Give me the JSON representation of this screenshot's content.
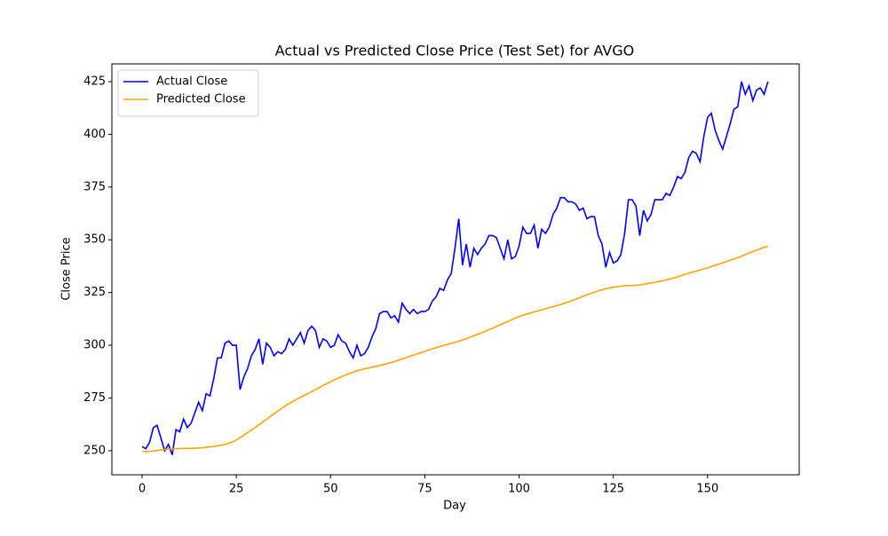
{
  "chart_data": {
    "type": "line",
    "title": "Actual vs Predicted Close Price (Test Set) for AVGO",
    "xlabel": "Day",
    "ylabel": "Close Price",
    "x": [
      0,
      1,
      2,
      3,
      4,
      5,
      6,
      7,
      8,
      9,
      10,
      11,
      12,
      13,
      14,
      15,
      16,
      17,
      18,
      19,
      20,
      21,
      22,
      23,
      24,
      25,
      26,
      27,
      28,
      29,
      30,
      31,
      32,
      33,
      34,
      35,
      36,
      37,
      38,
      39,
      40,
      41,
      42,
      43,
      44,
      45,
      46,
      47,
      48,
      49,
      50,
      51,
      52,
      53,
      54,
      55,
      56,
      57,
      58,
      59,
      60,
      61,
      62,
      63,
      64,
      65,
      66,
      67,
      68,
      69,
      70,
      71,
      72,
      73,
      74,
      75,
      76,
      77,
      78,
      79,
      80,
      81,
      82,
      83,
      84,
      85,
      86,
      87,
      88,
      89,
      90,
      91,
      92,
      93,
      94,
      95,
      96,
      97,
      98,
      99,
      100,
      101,
      102,
      103,
      104,
      105,
      106,
      107,
      108,
      109,
      110,
      111,
      112,
      113,
      114,
      115,
      116,
      117,
      118,
      119,
      120,
      121,
      122,
      123,
      124,
      125,
      126,
      127,
      128,
      129,
      130,
      131,
      132,
      133,
      134,
      135,
      136,
      137,
      138,
      139,
      140,
      141,
      142,
      143,
      144,
      145,
      146,
      147,
      148,
      149,
      150,
      151,
      152,
      153,
      154,
      155,
      156,
      157,
      158,
      159,
      160,
      161,
      162,
      163,
      164,
      165,
      166
    ],
    "series": [
      {
        "name": "Actual Close",
        "color": "#0000ff",
        "values": [
          252,
          251,
          254,
          261,
          262,
          256,
          250,
          253,
          248,
          260,
          259,
          265,
          261,
          263,
          268,
          273,
          269,
          277,
          276,
          284,
          294,
          294,
          301,
          302,
          300,
          300,
          279,
          285,
          289,
          295,
          298,
          303,
          291,
          301,
          299,
          295,
          297,
          296,
          298,
          303,
          300,
          303,
          306,
          301,
          307,
          309,
          307,
          299,
          303,
          302,
          299,
          300,
          305,
          302,
          301,
          297,
          294,
          300,
          295,
          296,
          299,
          304,
          308,
          315,
          316,
          316,
          313,
          314,
          311,
          320,
          317,
          315,
          317,
          315,
          316,
          316,
          317,
          321,
          323,
          327,
          326,
          331,
          334,
          346,
          360,
          338,
          348,
          337,
          346,
          343,
          346,
          348,
          352,
          352,
          351,
          346,
          341,
          350,
          341,
          342,
          347,
          356,
          353,
          353,
          357,
          346,
          355,
          353,
          356,
          362,
          365,
          370,
          370,
          368,
          368,
          367,
          364,
          365,
          360,
          361,
          361,
          352,
          348,
          337,
          344,
          339,
          340,
          343,
          353,
          369,
          369,
          366,
          352,
          364,
          359,
          362,
          369,
          369,
          369,
          372,
          371,
          375,
          380,
          379,
          382,
          389,
          392,
          391,
          387,
          399,
          408,
          410,
          402,
          397,
          393,
          399,
          405,
          412,
          413,
          425,
          419,
          423,
          416,
          421,
          422,
          419,
          425
        ]
      },
      {
        "name": "Predicted Close",
        "color": "#ffa500",
        "values": [
          249.8,
          249.6,
          249.7,
          249.9,
          250.1,
          250.4,
          250.6,
          250.8,
          250.9,
          251.0,
          251.0,
          251.1,
          251.1,
          251.1,
          251.2,
          251.3,
          251.4,
          251.6,
          251.8,
          252.0,
          252.3,
          252.6,
          253.0,
          253.5,
          254.2,
          255.1,
          256.2,
          257.4,
          258.6,
          259.8,
          261.0,
          262.3,
          263.6,
          264.9,
          266.2,
          267.5,
          268.8,
          270.1,
          271.3,
          272.4,
          273.4,
          274.4,
          275.3,
          276.2,
          277.1,
          278.0,
          279.0,
          279.9,
          280.9,
          281.8,
          282.7,
          283.6,
          284.4,
          285.2,
          285.9,
          286.6,
          287.3,
          287.9,
          288.4,
          288.8,
          289.2,
          289.6,
          290.0,
          290.4,
          290.8,
          291.3,
          291.8,
          292.3,
          292.9,
          293.5,
          294.1,
          294.7,
          295.3,
          295.9,
          296.5,
          297.1,
          297.7,
          298.3,
          298.9,
          299.4,
          299.9,
          300.4,
          300.9,
          301.4,
          301.9,
          302.5,
          303.1,
          303.8,
          304.5,
          305.2,
          305.9,
          306.6,
          307.4,
          308.1,
          308.9,
          309.7,
          310.5,
          311.3,
          312.1,
          312.9,
          313.6,
          314.2,
          314.8,
          315.3,
          315.8,
          316.3,
          316.8,
          317.3,
          317.8,
          318.3,
          318.8,
          319.3,
          319.9,
          320.5,
          321.1,
          321.8,
          322.5,
          323.2,
          323.9,
          324.6,
          325.2,
          325.8,
          326.3,
          326.8,
          327.2,
          327.5,
          327.8,
          328.0,
          328.2,
          328.3,
          328.3,
          328.4,
          328.6,
          328.9,
          329.2,
          329.5,
          329.8,
          330.2,
          330.6,
          331.0,
          331.4,
          331.9,
          332.4,
          333.0,
          333.6,
          334.2,
          334.7,
          335.2,
          335.7,
          336.2,
          336.7,
          337.3,
          337.9,
          338.5,
          339.1,
          339.7,
          340.3,
          340.9,
          341.5,
          342.2,
          343.0,
          343.7,
          344.4,
          345.1,
          345.8,
          346.4,
          347.0
        ]
      }
    ],
    "xlim": [
      -8.0,
      174.3
    ],
    "xticks": [
      0,
      25,
      50,
      75,
      100,
      125,
      150
    ],
    "ylim": [
      238.6,
      433.4
    ],
    "yticks": [
      250,
      275,
      300,
      325,
      350,
      375,
      400,
      425
    ],
    "legend": "upper left",
    "grid": false
  }
}
